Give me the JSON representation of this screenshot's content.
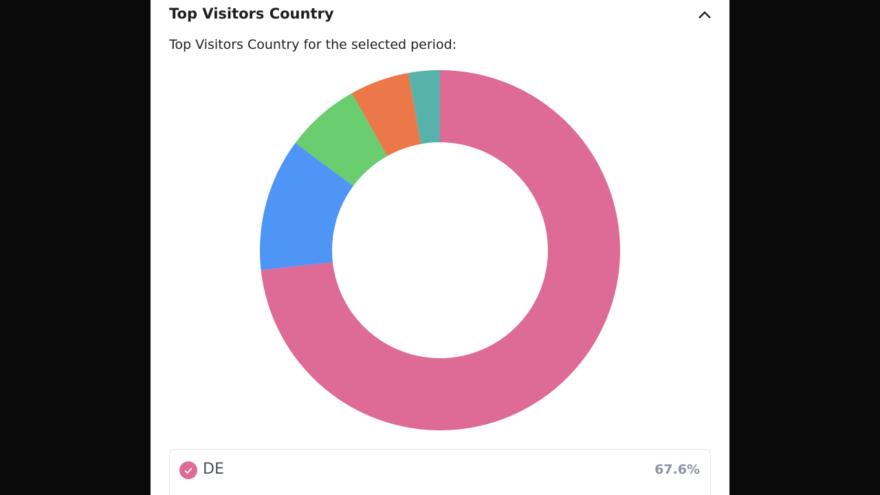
{
  "header": {
    "title": "Top Visitors Country"
  },
  "chart_data": {
    "type": "pie",
    "subtitle": "Top Visitors Country for the selected period:",
    "categories": [
      "DE",
      null,
      null,
      null,
      null
    ],
    "values": [
      67.6,
      11.0,
      6.2,
      4.9,
      2.6
    ],
    "value_labels": [
      "67.6%",
      null,
      null,
      null,
      null
    ],
    "colors": [
      "#de6a96",
      "#4f95f5",
      "#6acd6f",
      "#ec784a",
      "#56b2aa"
    ],
    "donut": true
  }
}
